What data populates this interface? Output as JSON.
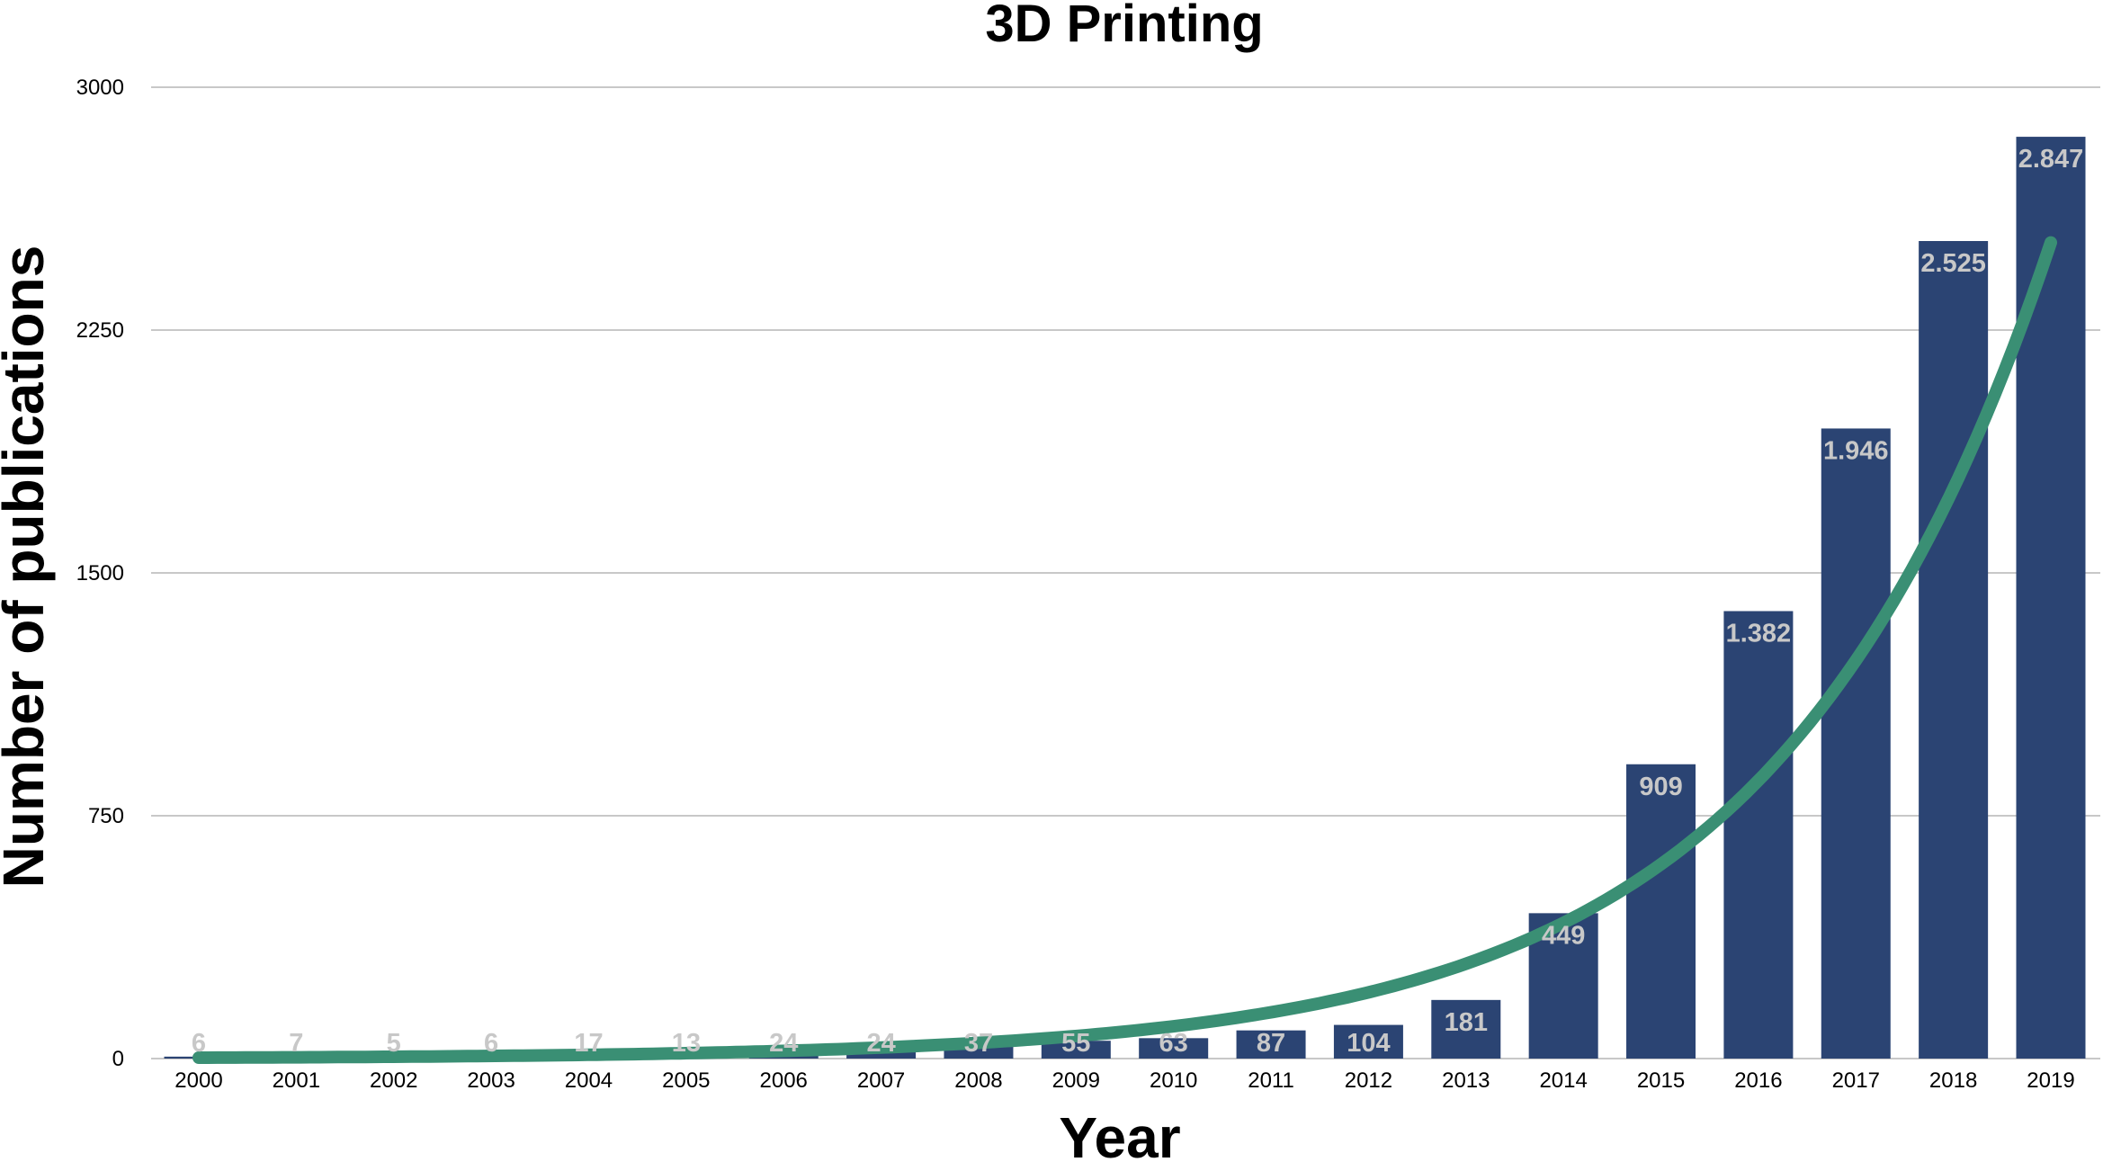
{
  "chart_data": {
    "type": "bar",
    "title": "3D Printing",
    "xlabel": "Year",
    "ylabel": "Number of publications",
    "categories": [
      "2000",
      "2001",
      "2002",
      "2003",
      "2004",
      "2005",
      "2006",
      "2007",
      "2008",
      "2009",
      "2010",
      "2011",
      "2012",
      "2013",
      "2014",
      "2015",
      "2016",
      "2017",
      "2018",
      "2019"
    ],
    "values": [
      6,
      7,
      5,
      6,
      17,
      13,
      24,
      24,
      37,
      55,
      63,
      87,
      104,
      181,
      449,
      909,
      1382,
      1946,
      2525,
      2847
    ],
    "value_labels": [
      "6",
      "7",
      "5",
      "6",
      "17",
      "13",
      "24",
      "24",
      "37",
      "55",
      "63",
      "87",
      "104",
      "181",
      "449",
      "909",
      "1.382",
      "1.946",
      "2.525",
      "2.847"
    ],
    "ylim": [
      0,
      3000
    ],
    "yticks": [
      "0",
      "750",
      "1500",
      "2250",
      "3000"
    ],
    "ytick_values": [
      0,
      750,
      1500,
      2250,
      3000
    ],
    "grid": true,
    "trendline": {
      "type": "exponential"
    },
    "colors": {
      "bar": "#2b4473",
      "trend": "#3a8f74",
      "label": "#c8c8c8",
      "grid": "#c8c8c8"
    }
  }
}
